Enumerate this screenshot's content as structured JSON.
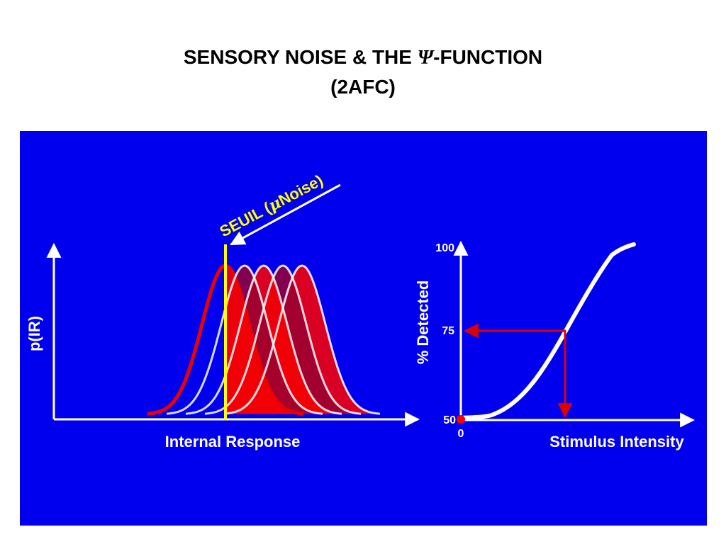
{
  "title": {
    "line1_prefix": "SENSORY NOISE & THE ",
    "psi_glyph": "Ψ",
    "line1_suffix": "-FUNCTION",
    "line2": "(2AFC)"
  },
  "colors": {
    "panel_background": "#0000ee",
    "threshold_line": "#ffff00",
    "noise_curve": "#ee0000",
    "curve_fill": "#ff0000",
    "curve_fill_dark": "#990033",
    "axis": "#ffffff",
    "guide_line": "#dd0000",
    "origin_dot": "#ff0000"
  },
  "left_panel": {
    "threshold_label_prefix": "SEUIL (",
    "mu_glyph": "μ",
    "threshold_label_suffix": "Noise)",
    "y_axis_label": "p(IR)",
    "x_axis_label": "Internal Response",
    "distribution_count": 5
  },
  "right_panel": {
    "y_axis_label": "% Detected",
    "x_axis_label": "Stimulus Intensity",
    "y_ticks": [
      "100",
      "75",
      "50"
    ],
    "x_origin_label": "0",
    "guide_level": "75"
  }
}
